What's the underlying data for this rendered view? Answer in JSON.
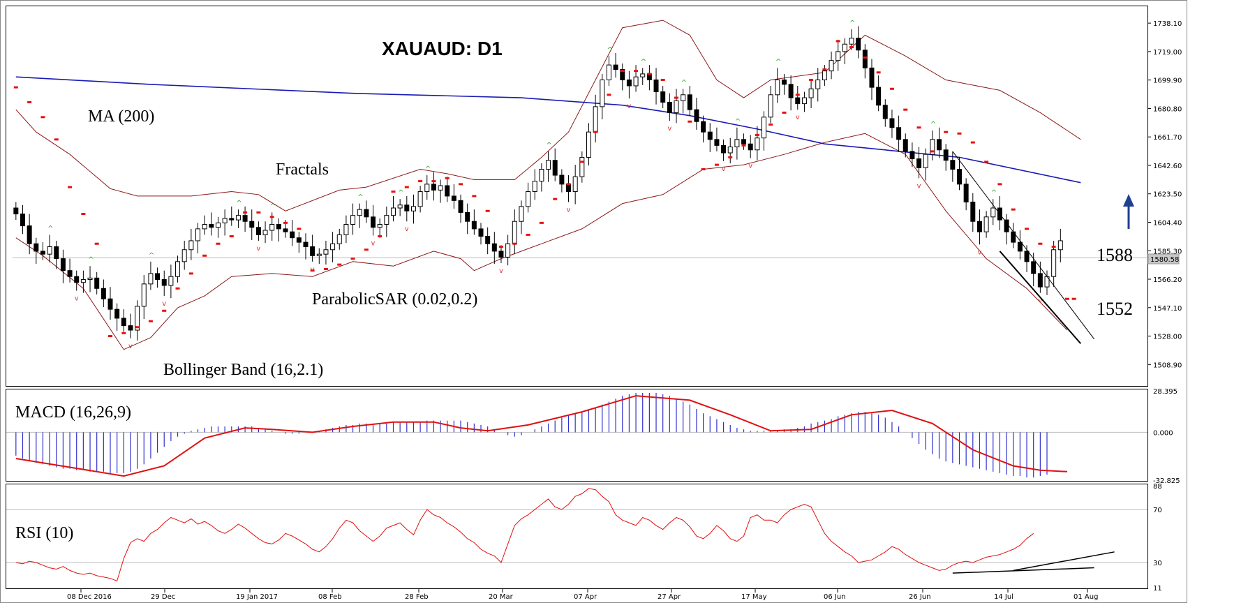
{
  "chart_data": {
    "title": "XAUAUD: D1",
    "type": "candlestick",
    "x_ticks": [
      "08 Dec 2016",
      "29 Dec",
      "19 Jan 2017",
      "08 Feb",
      "28 Feb",
      "20 Mar",
      "07 Apr",
      "27 Apr",
      "17 May",
      "06 Jun",
      "26 Jun",
      "14 Jul",
      "01 Aug"
    ],
    "price_panel": {
      "y_ticks": [
        "1738.10",
        "1719.00",
        "1699.90",
        "1680.80",
        "1661.70",
        "1642.60",
        "1623.50",
        "1604.40",
        "1585.30",
        "1566.20",
        "1547.10",
        "1528.00",
        "1508.90"
      ],
      "ylim": [
        1495,
        1748
      ],
      "last_price_label": "1580.58",
      "last_price": 1580.58,
      "labels": {
        "ma": "MA (200)",
        "fractals": "Fractals",
        "sar": "ParabolicSAR (0.02,0.2)",
        "bb": "Bollinger Band (16,2.1)",
        "level_high": "1588",
        "level_low": "1552"
      },
      "ohlc_close": [
        1610,
        1602,
        1590,
        1585,
        1583,
        1588,
        1580,
        1572,
        1568,
        1564,
        1566,
        1567,
        1560,
        1553,
        1546,
        1540,
        1535,
        1532,
        1548,
        1563,
        1570,
        1566,
        1562,
        1568,
        1578,
        1586,
        1592,
        1600,
        1603,
        1601,
        1604,
        1607,
        1606,
        1609,
        1605,
        1601,
        1596,
        1599,
        1603,
        1600,
        1598,
        1594,
        1591,
        1588,
        1582,
        1583,
        1586,
        1590,
        1596,
        1603,
        1609,
        1613,
        1608,
        1601,
        1603,
        1609,
        1614,
        1616,
        1612,
        1615,
        1625,
        1630,
        1626,
        1629,
        1622,
        1619,
        1611,
        1605,
        1600,
        1595,
        1590,
        1585,
        1581,
        1590,
        1605,
        1615,
        1625,
        1632,
        1640,
        1646,
        1636,
        1630,
        1625,
        1635,
        1648,
        1665,
        1682,
        1700,
        1710,
        1707,
        1700,
        1696,
        1702,
        1704,
        1700,
        1692,
        1685,
        1678,
        1686,
        1690,
        1680,
        1672,
        1665,
        1660,
        1656,
        1651,
        1655,
        1660,
        1657,
        1653,
        1661,
        1675,
        1690,
        1700,
        1697,
        1688,
        1684,
        1688,
        1694,
        1700,
        1706,
        1713,
        1719,
        1724,
        1728,
        1720,
        1708,
        1695,
        1683,
        1674,
        1668,
        1660,
        1652,
        1647,
        1641,
        1650,
        1660,
        1653,
        1646,
        1640,
        1630,
        1618,
        1605,
        1598,
        1608,
        1614,
        1606,
        1598,
        1591,
        1585,
        1578,
        1570,
        1561,
        1568,
        1586,
        1592
      ],
      "ma200": [
        [
          0,
          1702
        ],
        [
          20,
          1697
        ],
        [
          50,
          1691
        ],
        [
          75,
          1688
        ],
        [
          90,
          1683
        ],
        [
          100,
          1676
        ],
        [
          110,
          1667
        ],
        [
          120,
          1657
        ],
        [
          140,
          1648
        ],
        [
          158,
          1631
        ]
      ],
      "bb_upper": [
        [
          0,
          1680
        ],
        [
          3,
          1665
        ],
        [
          8,
          1650
        ],
        [
          14,
          1627
        ],
        [
          18,
          1622
        ],
        [
          26,
          1622
        ],
        [
          32,
          1625
        ],
        [
          36,
          1623
        ],
        [
          40,
          1612
        ],
        [
          48,
          1626
        ],
        [
          52,
          1628
        ],
        [
          60,
          1640
        ],
        [
          64,
          1637
        ],
        [
          68,
          1633
        ],
        [
          74,
          1633
        ],
        [
          78,
          1648
        ],
        [
          82,
          1665
        ],
        [
          86,
          1700
        ],
        [
          90,
          1735
        ],
        [
          96,
          1740
        ],
        [
          100,
          1730
        ],
        [
          104,
          1700
        ],
        [
          108,
          1688
        ],
        [
          112,
          1700
        ],
        [
          120,
          1705
        ],
        [
          126,
          1730
        ],
        [
          132,
          1716
        ],
        [
          138,
          1700
        ],
        [
          146,
          1693
        ],
        [
          152,
          1678
        ],
        [
          158,
          1660
        ]
      ],
      "bb_lower": [
        [
          0,
          1594
        ],
        [
          4,
          1582
        ],
        [
          10,
          1560
        ],
        [
          16,
          1519
        ],
        [
          20,
          1527
        ],
        [
          24,
          1547
        ],
        [
          28,
          1555
        ],
        [
          32,
          1568
        ],
        [
          38,
          1570
        ],
        [
          44,
          1568
        ],
        [
          50,
          1578
        ],
        [
          56,
          1575
        ],
        [
          62,
          1585
        ],
        [
          66,
          1580
        ],
        [
          68,
          1572
        ],
        [
          72,
          1580
        ],
        [
          78,
          1590
        ],
        [
          84,
          1600
        ],
        [
          90,
          1617
        ],
        [
          96,
          1623
        ],
        [
          102,
          1640
        ],
        [
          108,
          1643
        ],
        [
          114,
          1650
        ],
        [
          120,
          1658
        ],
        [
          126,
          1664
        ],
        [
          132,
          1650
        ],
        [
          138,
          1612
        ],
        [
          144,
          1580
        ],
        [
          150,
          1560
        ],
        [
          156,
          1532
        ]
      ],
      "sar": [
        [
          0,
          1695
        ],
        [
          2,
          1685
        ],
        [
          4,
          1675
        ],
        [
          6,
          1660
        ],
        [
          8,
          1628
        ],
        [
          10,
          1610
        ],
        [
          12,
          1590
        ],
        [
          14,
          1528
        ],
        [
          16,
          1530
        ],
        [
          18,
          1534
        ],
        [
          20,
          1538
        ],
        [
          22,
          1545
        ],
        [
          24,
          1560
        ],
        [
          26,
          1570
        ],
        [
          28,
          1582
        ],
        [
          30,
          1590
        ],
        [
          32,
          1595
        ],
        [
          34,
          1611
        ],
        [
          36,
          1611
        ],
        [
          38,
          1608
        ],
        [
          40,
          1604
        ],
        [
          42,
          1600
        ],
        [
          44,
          1572
        ],
        [
          46,
          1573
        ],
        [
          48,
          1576
        ],
        [
          50,
          1580
        ],
        [
          52,
          1586
        ],
        [
          54,
          1595
        ],
        [
          56,
          1625
        ],
        [
          58,
          1628
        ],
        [
          60,
          1632
        ],
        [
          62,
          1632
        ],
        [
          64,
          1634
        ],
        [
          66,
          1630
        ],
        [
          68,
          1622
        ],
        [
          70,
          1612
        ],
        [
          72,
          1588
        ],
        [
          74,
          1590
        ],
        [
          76,
          1596
        ],
        [
          78,
          1604
        ],
        [
          80,
          1620
        ],
        [
          82,
          1630
        ],
        [
          84,
          1645
        ],
        [
          86,
          1665
        ],
        [
          88,
          1690
        ],
        [
          90,
          1706
        ],
        [
          92,
          1706
        ],
        [
          94,
          1704
        ],
        [
          96,
          1700
        ],
        [
          98,
          1688
        ],
        [
          100,
          1672
        ],
        [
          102,
          1640
        ],
        [
          104,
          1643
        ],
        [
          106,
          1648
        ],
        [
          108,
          1656
        ],
        [
          110,
          1663
        ],
        [
          112,
          1670
        ],
        [
          114,
          1678
        ],
        [
          116,
          1690
        ],
        [
          118,
          1700
        ],
        [
          120,
          1707
        ],
        [
          122,
          1726
        ],
        [
          124,
          1722
        ],
        [
          126,
          1715
        ],
        [
          128,
          1705
        ],
        [
          130,
          1694
        ],
        [
          132,
          1680
        ],
        [
          134,
          1668
        ],
        [
          136,
          1652
        ],
        [
          138,
          1665
        ],
        [
          140,
          1664
        ],
        [
          142,
          1658
        ],
        [
          144,
          1645
        ],
        [
          146,
          1630
        ],
        [
          148,
          1613
        ],
        [
          150,
          1600
        ],
        [
          152,
          1590
        ],
        [
          154,
          1588
        ],
        [
          156,
          1553
        ],
        [
          157,
          1553
        ]
      ],
      "trendlines": [
        {
          "from": [
            139,
            1652
          ],
          "to": [
            160,
            1526
          ],
          "width": 1
        },
        {
          "from": [
            146,
            1585
          ],
          "to": [
            158,
            1523
          ],
          "width": 2
        }
      ]
    },
    "macd_panel": {
      "label": "MACD (16,26,9)",
      "y_ticks": [
        "28.395",
        "0.000",
        "-32.825"
      ],
      "ylim": [
        -32.825,
        28.395
      ],
      "histogram": [
        -16,
        -18,
        -20,
        -21,
        -22,
        -23,
        -24,
        -25,
        -25,
        -26,
        -26,
        -27,
        -27,
        -27,
        -28,
        -28,
        -28,
        -27,
        -25,
        -22,
        -18,
        -14,
        -10,
        -6,
        -3,
        -1,
        1,
        2,
        3,
        4,
        4,
        4,
        4,
        4,
        4,
        4,
        3,
        2,
        1,
        0,
        -1,
        -1,
        -1,
        0,
        0,
        1,
        2,
        3,
        4,
        5,
        5,
        6,
        6,
        6,
        6,
        6,
        7,
        7,
        7,
        7,
        7,
        8,
        8,
        8,
        8,
        8,
        8,
        7,
        6,
        5,
        4,
        2,
        0,
        -2,
        -3,
        -2,
        0,
        2,
        4,
        6,
        8,
        10,
        12,
        13,
        14,
        15,
        17,
        19,
        21,
        23,
        25,
        26,
        27,
        27,
        27,
        27,
        26,
        25,
        23,
        21,
        19,
        16,
        13,
        11,
        9,
        7,
        5,
        3,
        2,
        1,
        1,
        1,
        1,
        1,
        2,
        2,
        3,
        4,
        6,
        7,
        8,
        9,
        11,
        12,
        13,
        14,
        14,
        13,
        12,
        10,
        7,
        4,
        0,
        -4,
        -8,
        -12,
        -15,
        -18,
        -20,
        -21,
        -22,
        -23,
        -24,
        -25,
        -26,
        -27,
        -28,
        -29,
        -30,
        -30,
        -31,
        -31,
        -30,
        -29
      ],
      "signal": [
        [
          0,
          -18
        ],
        [
          8,
          -24
        ],
        [
          16,
          -30
        ],
        [
          22,
          -23
        ],
        [
          28,
          -4
        ],
        [
          34,
          3
        ],
        [
          38,
          2
        ],
        [
          44,
          0
        ],
        [
          50,
          4
        ],
        [
          56,
          7
        ],
        [
          62,
          7
        ],
        [
          66,
          3
        ],
        [
          70,
          1
        ],
        [
          76,
          5
        ],
        [
          84,
          14
        ],
        [
          92,
          25
        ],
        [
          100,
          22
        ],
        [
          106,
          12
        ],
        [
          112,
          1
        ],
        [
          118,
          2
        ],
        [
          124,
          12
        ],
        [
          130,
          15
        ],
        [
          136,
          6
        ],
        [
          142,
          -12
        ],
        [
          148,
          -23
        ],
        [
          152,
          -26
        ],
        [
          156,
          -27
        ]
      ]
    },
    "rsi_panel": {
      "label": "RSI (10)",
      "y_ticks": [
        "88",
        "70",
        "30",
        "11"
      ],
      "ylim": [
        11,
        88
      ],
      "values": [
        30,
        29,
        31,
        30,
        28,
        26,
        25,
        27,
        24,
        22,
        21,
        22,
        20,
        19,
        18,
        16,
        33,
        45,
        48,
        46,
        52,
        55,
        60,
        64,
        62,
        60,
        63,
        59,
        61,
        58,
        54,
        52,
        55,
        59,
        56,
        52,
        48,
        45,
        44,
        47,
        52,
        50,
        47,
        44,
        40,
        38,
        42,
        48,
        56,
        62,
        60,
        54,
        50,
        46,
        50,
        56,
        58,
        60,
        55,
        51,
        62,
        70,
        66,
        64,
        60,
        57,
        53,
        48,
        45,
        40,
        37,
        35,
        30,
        44,
        58,
        63,
        66,
        70,
        74,
        78,
        72,
        70,
        74,
        80,
        82,
        86,
        85,
        80,
        76,
        66,
        62,
        60,
        58,
        64,
        62,
        58,
        55,
        60,
        64,
        62,
        57,
        50,
        48,
        52,
        58,
        54,
        48,
        46,
        50,
        64,
        66,
        62,
        62,
        60,
        66,
        70,
        72,
        74,
        72,
        62,
        52,
        46,
        42,
        38,
        35,
        30,
        31,
        32,
        35,
        38,
        42,
        40,
        36,
        33,
        30,
        28,
        26,
        24,
        25,
        28,
        30,
        31,
        30,
        32,
        34,
        35,
        36,
        38,
        40,
        43,
        48,
        52
      ],
      "trendlines": [
        {
          "from": [
            139,
            22
          ],
          "to": [
            160,
            26
          ],
          "width": 1.5
        },
        {
          "from": [
            148,
            24
          ],
          "to": [
            163,
            38
          ],
          "width": 1.5
        }
      ]
    }
  }
}
